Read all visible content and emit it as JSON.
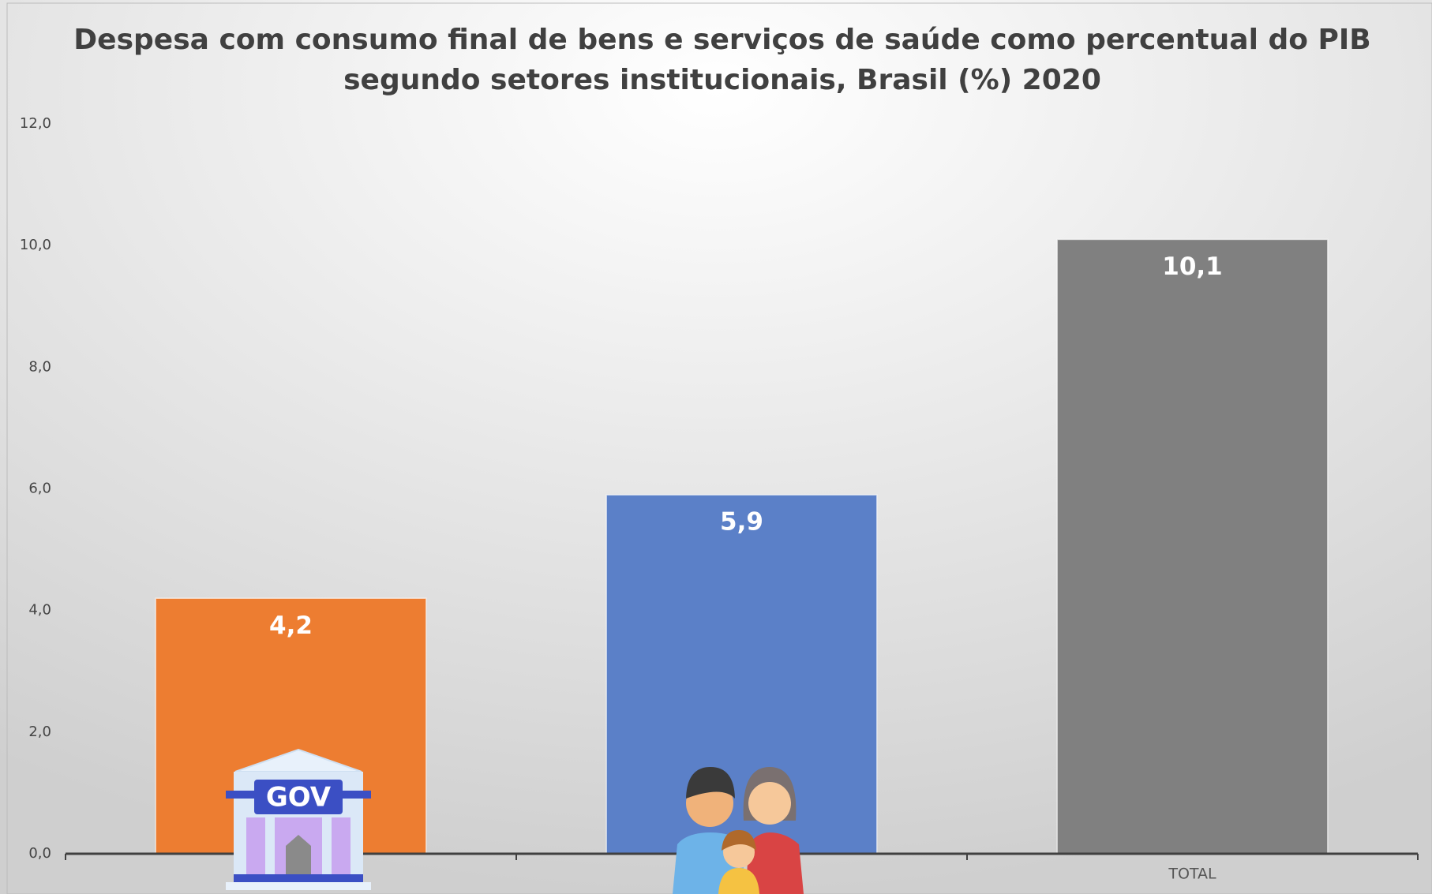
{
  "chart_data": {
    "type": "bar",
    "title": [
      "Despesa com consumo final de bens e serviços de saúde como percentual do PIB",
      "segundo setores institucionais, Brasil (%) 2020"
    ],
    "categories": [
      null,
      null,
      "TOTAL"
    ],
    "values": [
      4.2,
      5.9,
      10.1
    ],
    "value_labels": [
      "4,2",
      "5,9",
      "10,1"
    ],
    "colors": [
      "#ed7d31",
      "#5b80c8",
      "#808080"
    ],
    "ylim": [
      0,
      12
    ],
    "yticks": [
      {
        "value": 0,
        "label": "0,0"
      },
      {
        "value": 2,
        "label": "2,0"
      },
      {
        "value": 4,
        "label": "4,0"
      },
      {
        "value": 6,
        "label": "6,0"
      },
      {
        "value": 8,
        "label": "8,0"
      },
      {
        "value": 10,
        "label": "10,0"
      },
      {
        "value": 12,
        "label": "12,0"
      }
    ],
    "grid": false
  }
}
